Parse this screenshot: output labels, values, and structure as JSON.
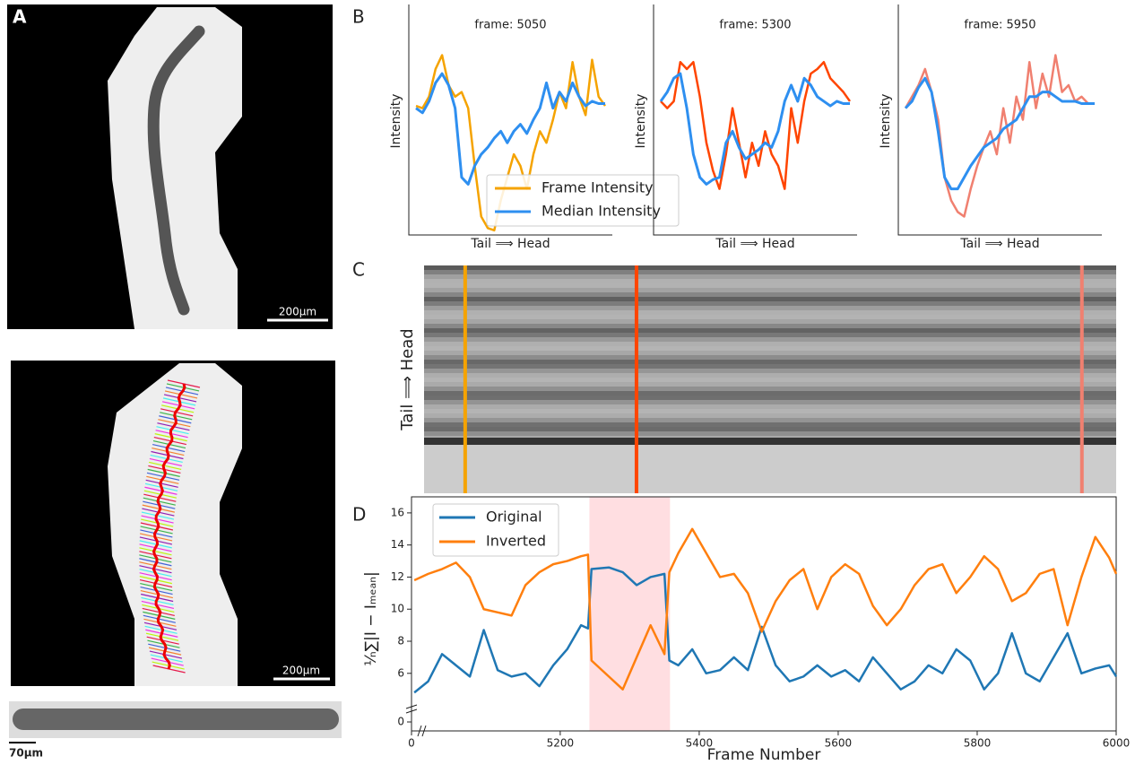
{
  "panel_labels": [
    "A",
    "B",
    "C",
    "D"
  ],
  "scale_bars": [
    "200µm",
    "200µm",
    "70µm"
  ],
  "chart_data": [
    {
      "type": "line",
      "title": "frame: 5050",
      "ylabel": "Intensity",
      "xlabel": "Tail ⟹ Head",
      "ylim": [
        0,
        100
      ],
      "legend": "lower center",
      "series": [
        {
          "name": "Frame Intensity",
          "color": "#f5a300",
          "values": [
            56,
            55,
            60,
            72,
            78,
            65,
            60,
            62,
            55,
            30,
            8,
            3,
            2,
            15,
            25,
            35,
            30,
            20,
            35,
            45,
            40,
            50,
            62,
            55,
            75,
            60,
            52,
            76,
            60,
            56
          ]
        },
        {
          "name": "Median Intensity",
          "color": "#2e8ff0",
          "values": [
            55,
            53,
            58,
            66,
            70,
            65,
            55,
            25,
            22,
            30,
            35,
            38,
            42,
            45,
            40,
            45,
            48,
            44,
            50,
            55,
            66,
            55,
            62,
            58,
            66,
            60,
            56,
            58,
            57,
            57
          ]
        }
      ]
    },
    {
      "type": "line",
      "title": "frame: 5300",
      "ylabel": "Intensity",
      "xlabel": "Tail ⟹ Head",
      "ylim": [
        0,
        100
      ],
      "series": [
        {
          "color": "#ff4500",
          "values": [
            58,
            55,
            58,
            75,
            72,
            75,
            60,
            40,
            28,
            20,
            35,
            55,
            40,
            25,
            40,
            30,
            45,
            35,
            30,
            20,
            55,
            40,
            58,
            70,
            72,
            75,
            68,
            65,
            62,
            58
          ]
        },
        {
          "color": "#2e8ff0",
          "values": [
            58,
            62,
            68,
            70,
            55,
            35,
            25,
            22,
            24,
            25,
            40,
            45,
            38,
            33,
            35,
            37,
            40,
            38,
            45,
            58,
            65,
            58,
            68,
            65,
            60,
            58,
            56,
            58,
            57,
            57
          ]
        }
      ]
    },
    {
      "type": "line",
      "title": "frame: 5950",
      "ylabel": "Intensity",
      "xlabel": "Tail ⟹ Head",
      "ylim": [
        0,
        100
      ],
      "series": [
        {
          "color": "#f08070",
          "values": [
            55,
            60,
            65,
            72,
            62,
            50,
            25,
            15,
            10,
            8,
            20,
            30,
            38,
            45,
            35,
            55,
            40,
            60,
            50,
            75,
            55,
            70,
            60,
            78,
            62,
            65,
            58,
            60,
            57,
            57
          ]
        },
        {
          "color": "#2e8ff0",
          "values": [
            55,
            58,
            64,
            68,
            62,
            45,
            25,
            20,
            20,
            25,
            30,
            34,
            38,
            40,
            42,
            46,
            48,
            50,
            55,
            60,
            60,
            62,
            62,
            60,
            58,
            58,
            58,
            57,
            57,
            57
          ]
        }
      ]
    },
    {
      "type": "kymograph",
      "ylabel": "Tail ⟹ Head",
      "xlim": [
        4990,
        6000
      ],
      "markers": [
        {
          "x": 5050,
          "color": "#f5a300"
        },
        {
          "x": 5300,
          "color": "#ff4500"
        },
        {
          "x": 5950,
          "color": "#f08070"
        }
      ]
    },
    {
      "type": "line",
      "xlabel": "Frame Number",
      "ylabel": "¹⁄ₙ∑|I − Iₘₑₐₙ|",
      "xlim": [
        4986,
        6000
      ],
      "ylim": [
        4.2,
        17
      ],
      "xticks": [
        0,
        5200,
        5400,
        5600,
        5800,
        6000
      ],
      "yticks": [
        0,
        6,
        8,
        10,
        12,
        14,
        16
      ],
      "axis_break": true,
      "highlight": [
        5242,
        5358
      ],
      "legend": "upper left",
      "x": [
        4990,
        5010,
        5030,
        5050,
        5070,
        5090,
        5110,
        5130,
        5150,
        5170,
        5190,
        5210,
        5230,
        5240,
        5245,
        5270,
        5290,
        5310,
        5330,
        5350,
        5357,
        5370,
        5390,
        5410,
        5430,
        5450,
        5470,
        5490,
        5510,
        5530,
        5550,
        5570,
        5590,
        5610,
        5630,
        5650,
        5670,
        5690,
        5710,
        5730,
        5750,
        5770,
        5790,
        5810,
        5830,
        5850,
        5870,
        5890,
        5910,
        5930,
        5950,
        5970,
        5990,
        6000
      ],
      "series": [
        {
          "name": "Original",
          "color": "#1f77b4",
          "values": [
            4.8,
            5.5,
            7.2,
            6.5,
            5.8,
            8.7,
            6.2,
            5.8,
            6.0,
            5.2,
            6.5,
            7.5,
            9.0,
            8.8,
            12.5,
            12.6,
            12.3,
            11.5,
            12.0,
            12.2,
            6.8,
            6.5,
            7.5,
            6.0,
            6.2,
            7.0,
            6.2,
            8.9,
            6.5,
            5.5,
            5.8,
            6.5,
            5.8,
            6.2,
            5.5,
            7.0,
            6.0,
            5.0,
            5.5,
            6.5,
            6.0,
            7.5,
            6.8,
            5.0,
            6.0,
            8.5,
            6.0,
            5.5,
            7.0,
            8.5,
            6.0,
            6.3,
            6.5,
            5.8
          ]
        },
        {
          "name": "Inverted",
          "color": "#ff7f0e",
          "values": [
            11.8,
            12.2,
            12.5,
            12.9,
            12.0,
            10.0,
            9.8,
            9.6,
            11.5,
            12.3,
            12.8,
            13.0,
            13.3,
            13.4,
            6.8,
            5.8,
            5.0,
            7.0,
            9.0,
            7.2,
            12.3,
            13.5,
            15.0,
            13.5,
            12.0,
            12.2,
            11.0,
            8.6,
            10.5,
            11.8,
            12.5,
            10.0,
            12.0,
            12.8,
            12.2,
            10.2,
            9.0,
            10.0,
            11.5,
            12.5,
            12.8,
            11.0,
            12.0,
            13.3,
            12.5,
            10.5,
            11.0,
            12.2,
            12.5,
            9.0,
            12.0,
            14.5,
            13.2,
            12.2
          ]
        }
      ]
    }
  ]
}
